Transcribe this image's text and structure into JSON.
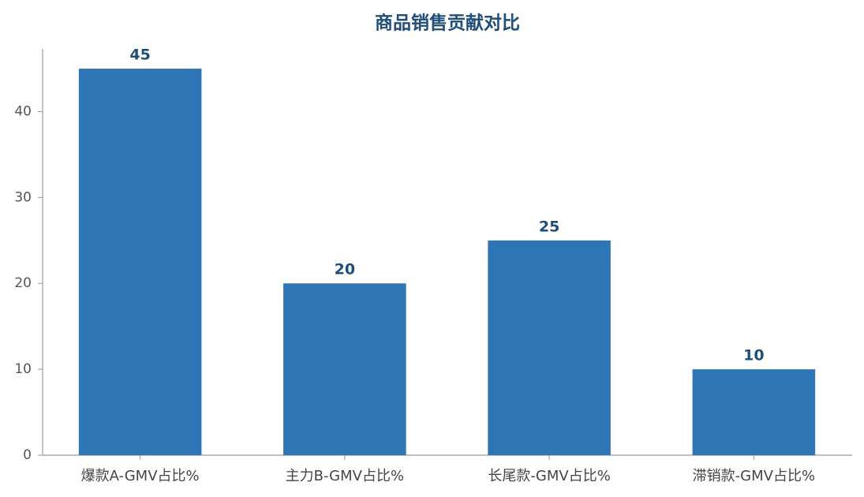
{
  "chart_data": {
    "type": "bar",
    "title": "商品销售贡献对比",
    "categories": [
      "爆款A-GMV占比%",
      "主力B-GMV占比%",
      "长尾款-GMV占比%",
      "滞销款-GMV占比%"
    ],
    "values": [
      45,
      20,
      25,
      10
    ],
    "color": "#2e75b6",
    "ylim": [
      0,
      47.3
    ],
    "yticks": [
      0,
      10,
      20,
      30,
      40
    ],
    "grid": false
  }
}
